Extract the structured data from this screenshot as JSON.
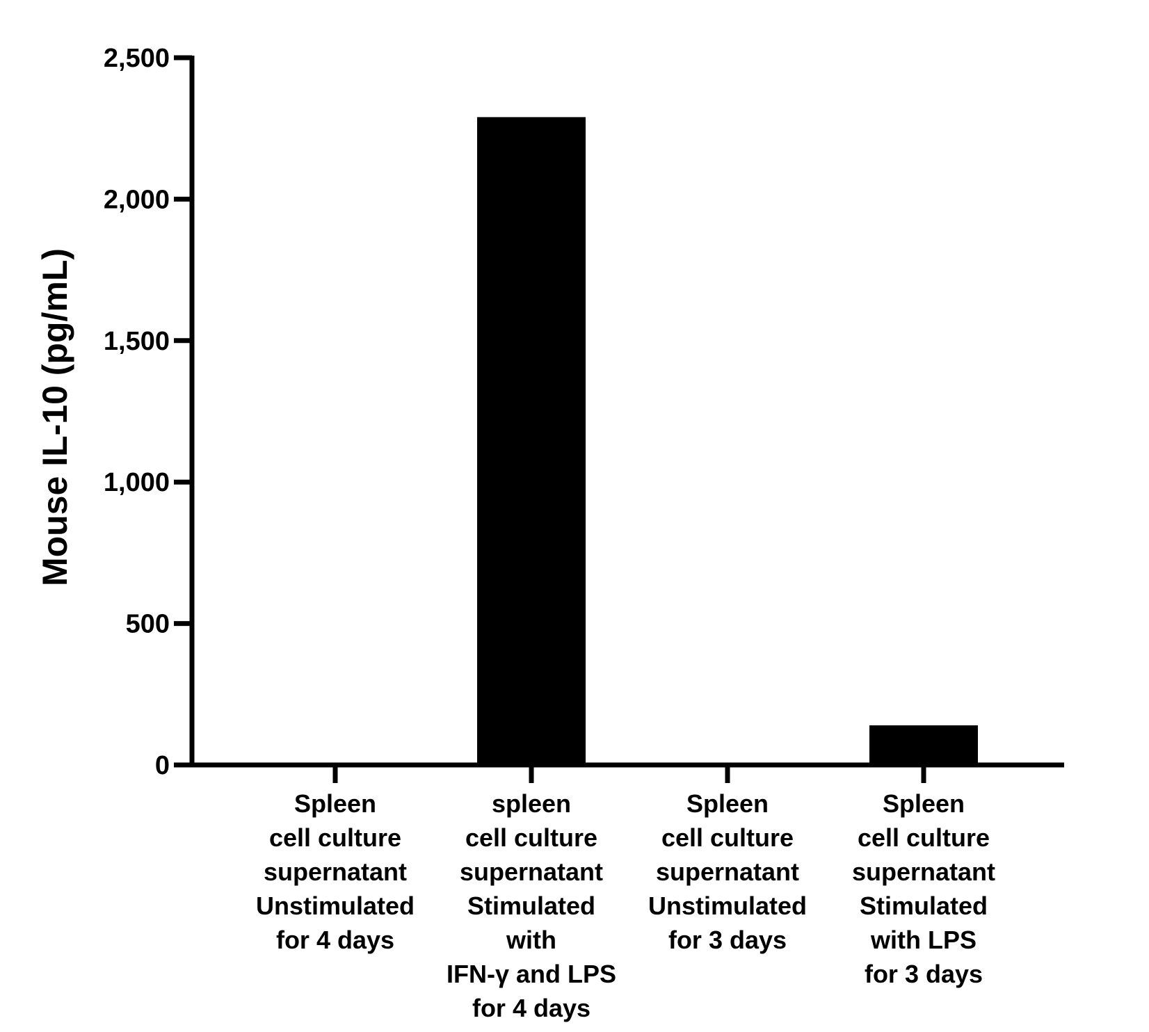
{
  "chart_data": {
    "type": "bar",
    "title": "",
    "xlabel": "",
    "ylabel": "Mouse IL-10 (pg/mL)",
    "ylim": [
      0,
      2500
    ],
    "yticks": [
      0,
      500,
      1000,
      1500,
      2000,
      2500
    ],
    "ytick_labels": [
      "0",
      "500",
      "1,000",
      "1,500",
      "2,000",
      "2,500"
    ],
    "categories": [
      [
        "Spleen",
        "cell culture",
        "supernatant",
        "Unstimulated",
        "for 4 days"
      ],
      [
        "spleen",
        "cell culture",
        "supernatant",
        "Stimulated",
        "with",
        "IFN-γ and LPS",
        "for 4 days"
      ],
      [
        "Spleen",
        "cell culture",
        "supernatant",
        "Unstimulated",
        "for 3 days"
      ],
      [
        "Spleen",
        "cell culture",
        "supernatant",
        "Stimulated",
        "with LPS",
        "for 3 days"
      ]
    ],
    "values": [
      0,
      2290,
      0,
      140
    ],
    "bar_color": "#000000",
    "grid": false,
    "legend": "none"
  }
}
